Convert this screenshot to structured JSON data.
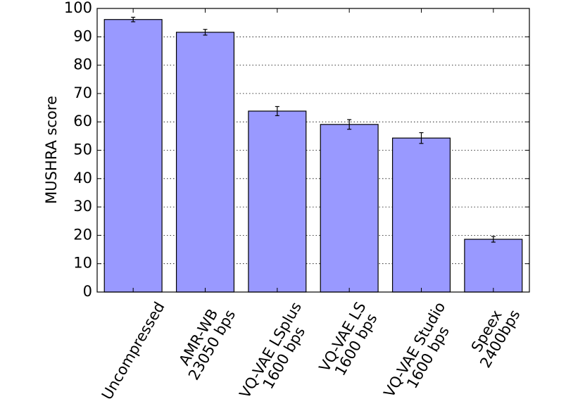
{
  "chart_data": {
    "type": "bar",
    "ylabel": "MUSHRA score",
    "categories": [
      "Uncompressed",
      "AMR-WB\n23050 bps",
      "VQ-VAE LSplus\n1600 bps",
      "VQ-VAE LS\n1600 bps",
      "VQ-VAE Studio\n1600 bps",
      "Speex\n2400bps"
    ],
    "values": [
      96.1,
      91.6,
      63.8,
      59.1,
      54.3,
      18.6
    ],
    "errors": [
      0.8,
      1.0,
      1.6,
      1.7,
      1.9,
      1.0
    ],
    "color": "#9999ff",
    "ylim": [
      0,
      100
    ],
    "yticks": [
      0,
      10,
      20,
      30,
      40,
      50,
      60,
      70,
      80,
      90,
      100
    ],
    "grid": true
  }
}
